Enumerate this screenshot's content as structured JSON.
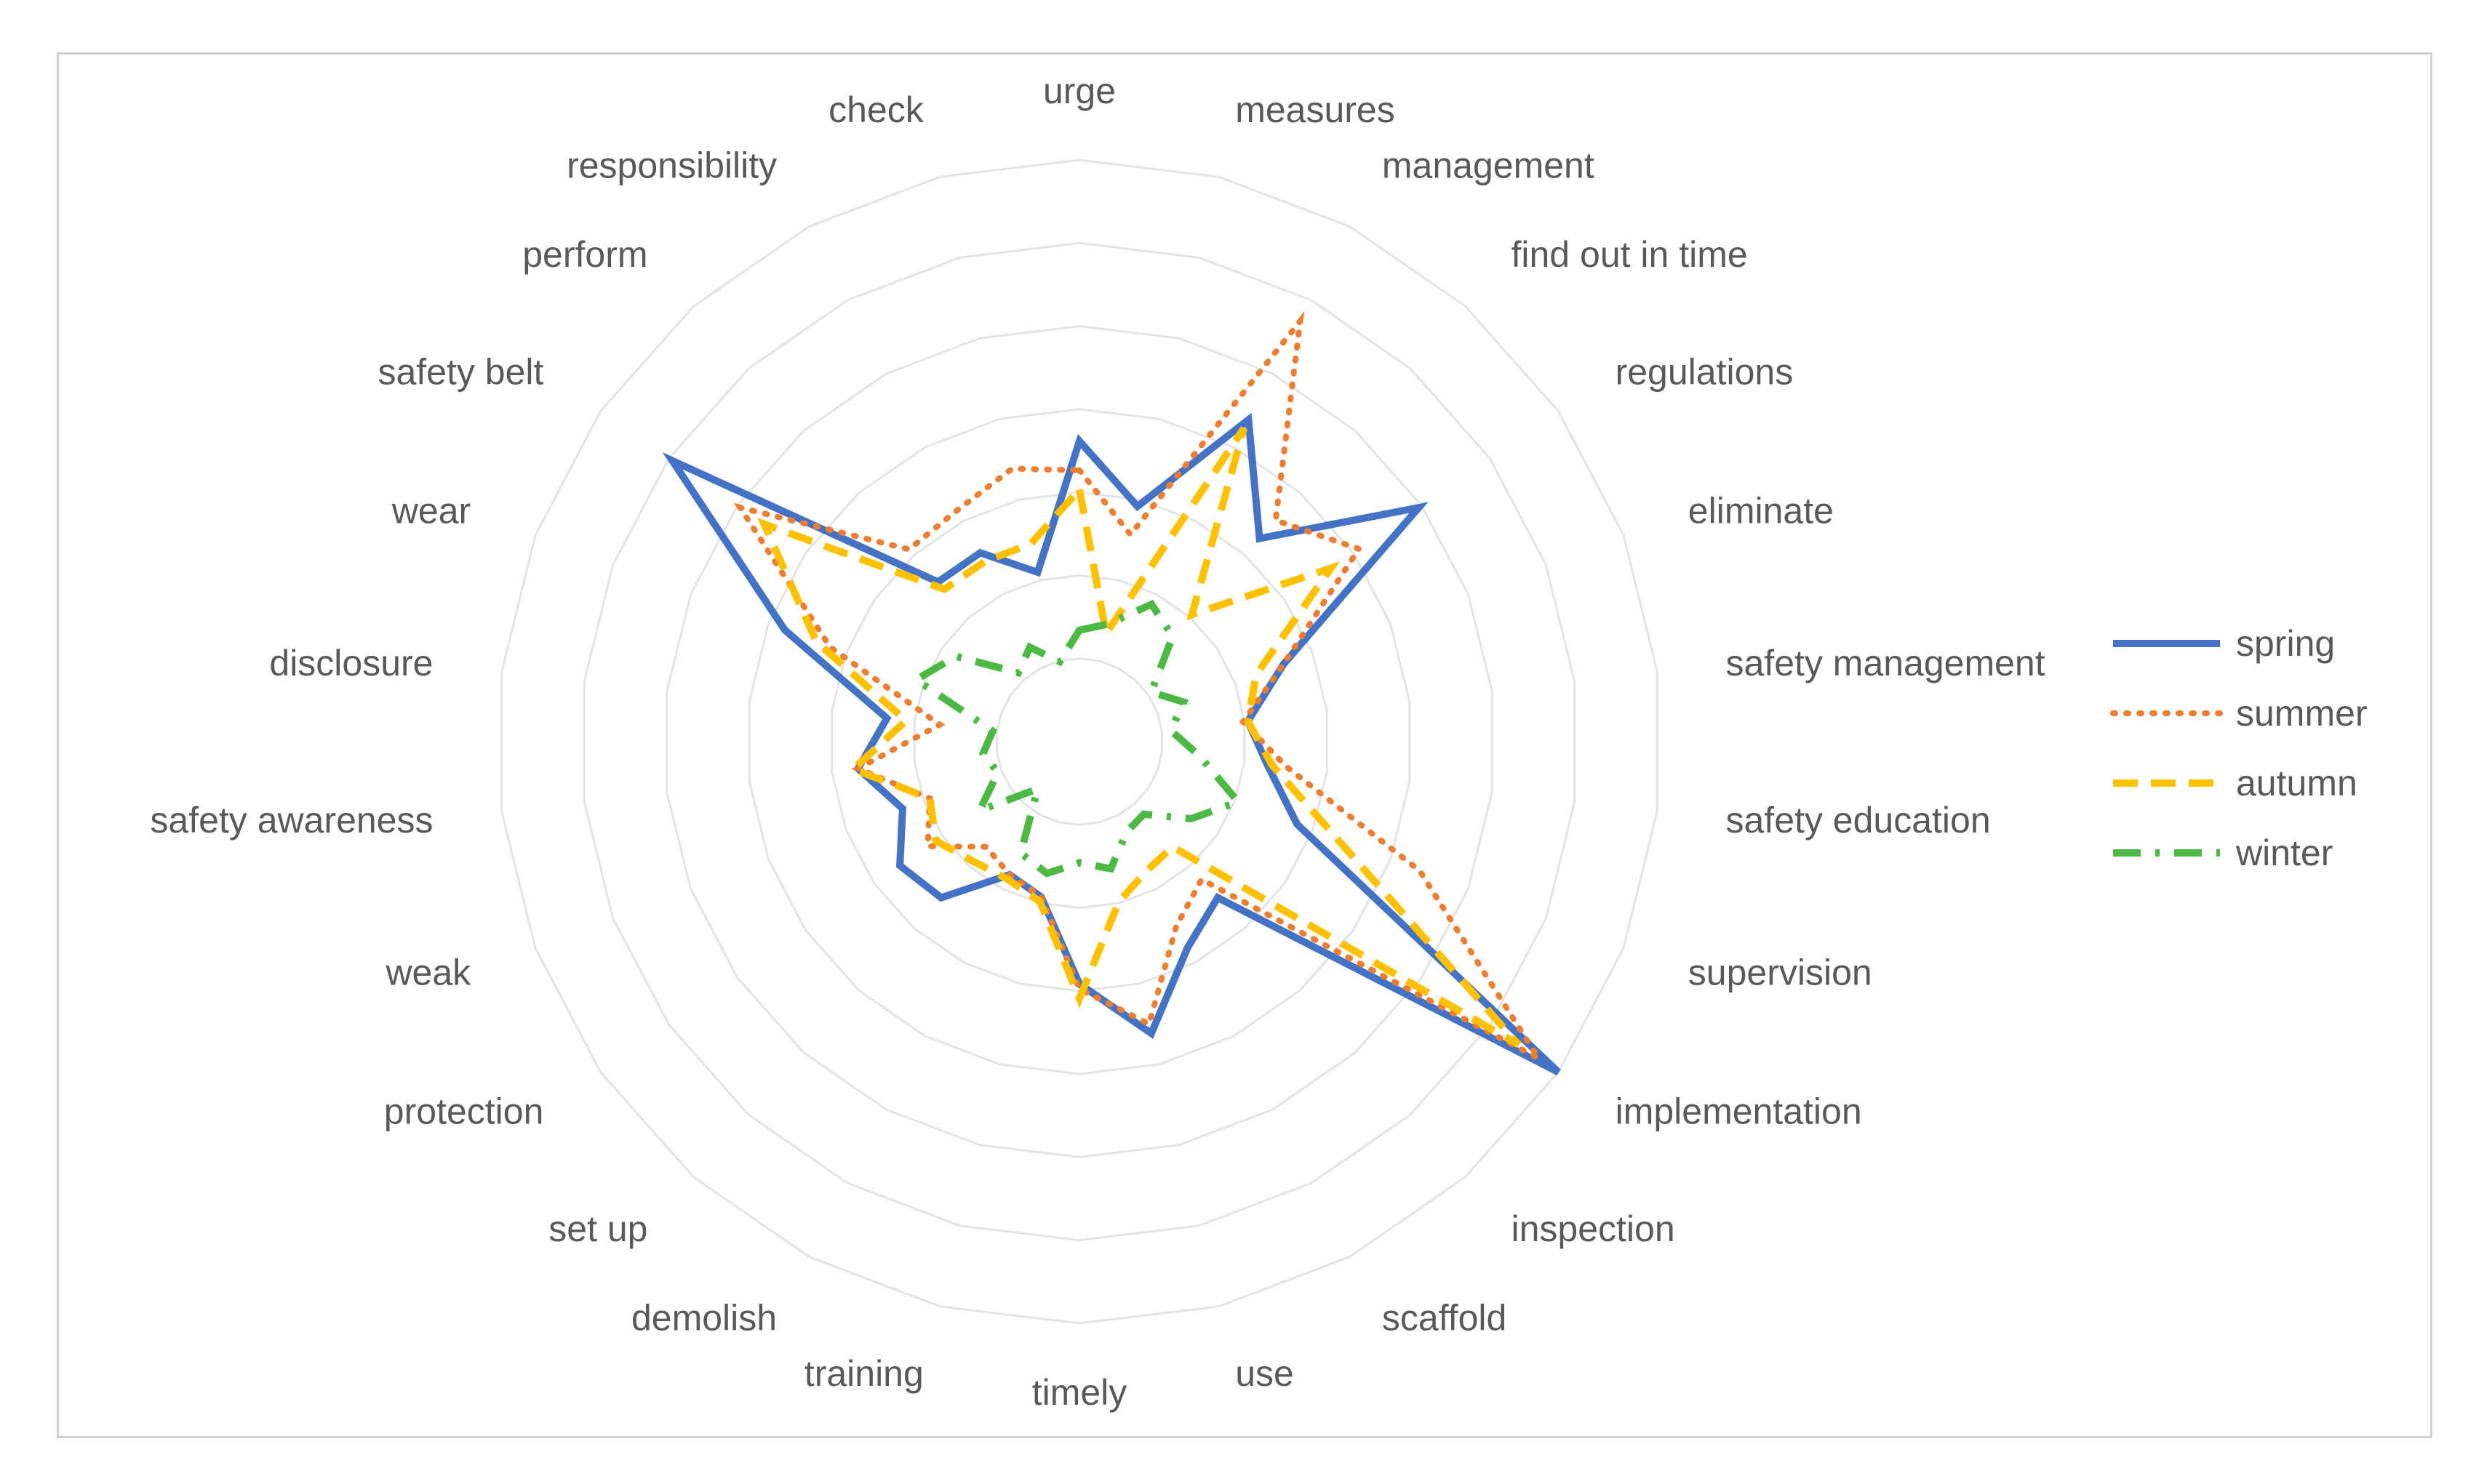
{
  "chart_data": {
    "type": "radar",
    "categories": [
      "urge",
      "measures",
      "management",
      "find out in time",
      "regulations",
      "eliminate",
      "safety management",
      "safety education",
      "supervision",
      "implementation",
      "inspection",
      "scaffold",
      "use",
      "timely",
      "training",
      "demolish",
      "set up",
      "protection",
      "weak",
      "safety awareness",
      "disclosure",
      "wear",
      "safety belt",
      "perform",
      "responsibility",
      "check"
    ],
    "rmax": 12,
    "ring_count": 7,
    "grid": true,
    "legend_position": "right",
    "series": [
      {
        "name": "spring",
        "color": "#4472C4",
        "style": "solid",
        "values": [
          6.2,
          5.0,
          7.5,
          5.6,
          8.5,
          4.5,
          3.5,
          3.9,
          4.8,
          12.0,
          4.3,
          4.8,
          6.2,
          5.0,
          3.3,
          3.1,
          4.3,
          4.5,
          3.9,
          4.6,
          4.0,
          6.5,
          10.2,
          4.4,
          4.4,
          3.6
        ]
      },
      {
        "name": "summer",
        "color": "#ED7D31",
        "style": "dotted",
        "values": [
          5.6,
          4.4,
          9.8,
          6.1,
          7.0,
          4.5,
          3.4,
          4.3,
          7.5,
          11.5,
          3.8,
          4.3,
          6.0,
          5.1,
          3.3,
          3.1,
          2.9,
          3.8,
          3.3,
          4.6,
          2.9,
          5.5,
          8.5,
          5.3,
          5.4,
          5.8
        ]
      },
      {
        "name": "autumn",
        "color": "#FFC000",
        "style": "dashed",
        "values": [
          5.2,
          2.3,
          7.3,
          3.5,
          6.3,
          3.9,
          3.5,
          4.0,
          5.7,
          11.0,
          2.9,
          3.0,
          3.4,
          5.3,
          3.4,
          3.2,
          3.3,
          3.6,
          3.3,
          4.7,
          3.6,
          5.8,
          7.9,
          4.2,
          4.2,
          4.2
        ]
      },
      {
        "name": "winter",
        "color": "#4CB944",
        "style": "dashdot",
        "values": [
          2.3,
          2.5,
          3.2,
          2.9,
          1.8,
          2.3,
          1.9,
          2.5,
          3.5,
          2.8,
          2.0,
          2.1,
          2.7,
          2.5,
          2.8,
          2.6,
          1.3,
          2.5,
          1.8,
          2.0,
          1.8,
          3.6,
          3.1,
          1.9,
          2.2,
          1.7
        ]
      }
    ]
  }
}
